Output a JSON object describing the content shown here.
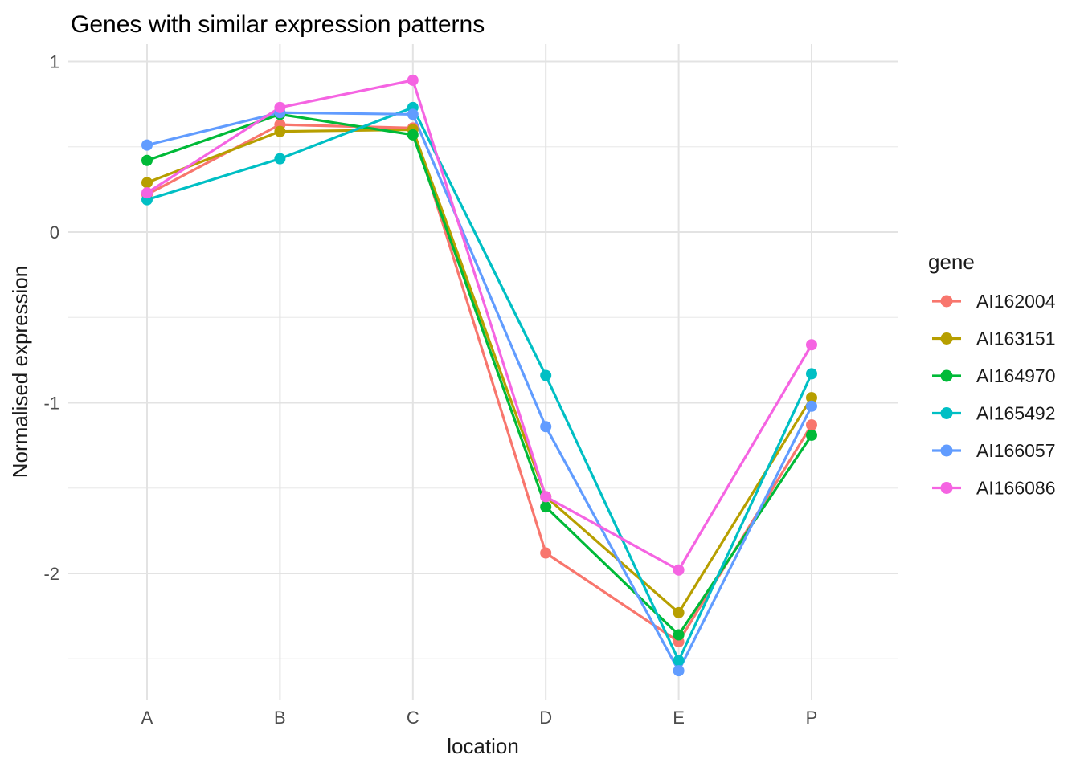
{
  "chart_data": {
    "type": "line",
    "title": "Genes with similar expression patterns",
    "xlabel": "location",
    "ylabel": "Normalised expression",
    "legend_title": "gene",
    "legend_position": "right",
    "grid": true,
    "categories": [
      "A",
      "B",
      "C",
      "D",
      "E",
      "P"
    ],
    "series": [
      {
        "name": "AI162004",
        "color": "#F8766D",
        "values": [
          0.22,
          0.63,
          0.61,
          -1.88,
          -2.4,
          -1.13
        ]
      },
      {
        "name": "AI163151",
        "color": "#B79F00",
        "values": [
          0.29,
          0.59,
          0.6,
          -1.55,
          -2.23,
          -0.97
        ]
      },
      {
        "name": "AI164970",
        "color": "#00BA38",
        "values": [
          0.42,
          0.69,
          0.57,
          -1.61,
          -2.36,
          -1.19
        ]
      },
      {
        "name": "AI165492",
        "color": "#00BFC4",
        "values": [
          0.19,
          0.43,
          0.73,
          -0.84,
          -2.51,
          -0.83
        ]
      },
      {
        "name": "AI166057",
        "color": "#619CFF",
        "values": [
          0.51,
          0.7,
          0.69,
          -1.14,
          -2.57,
          -1.02
        ]
      },
      {
        "name": "AI166086",
        "color": "#F564E2",
        "values": [
          0.23,
          0.73,
          0.89,
          -1.55,
          -1.98,
          -0.66
        ]
      }
    ],
    "yticks": [
      1,
      0,
      -1,
      -2
    ],
    "ytick_labels": [
      "1",
      "0",
      "-1",
      "-2"
    ],
    "minor_yticks": [
      0.5,
      -0.5,
      -1.5,
      -2.5
    ],
    "ylim": [
      -2.74,
      1.1
    ],
    "colors": {
      "tick_label": "#4d4d4d",
      "grid_major": "#e3e3e3",
      "grid_minor": "#ececec",
      "title_text": "#000000",
      "axis_text": "#1a1a1a",
      "background": "#ffffff"
    }
  }
}
